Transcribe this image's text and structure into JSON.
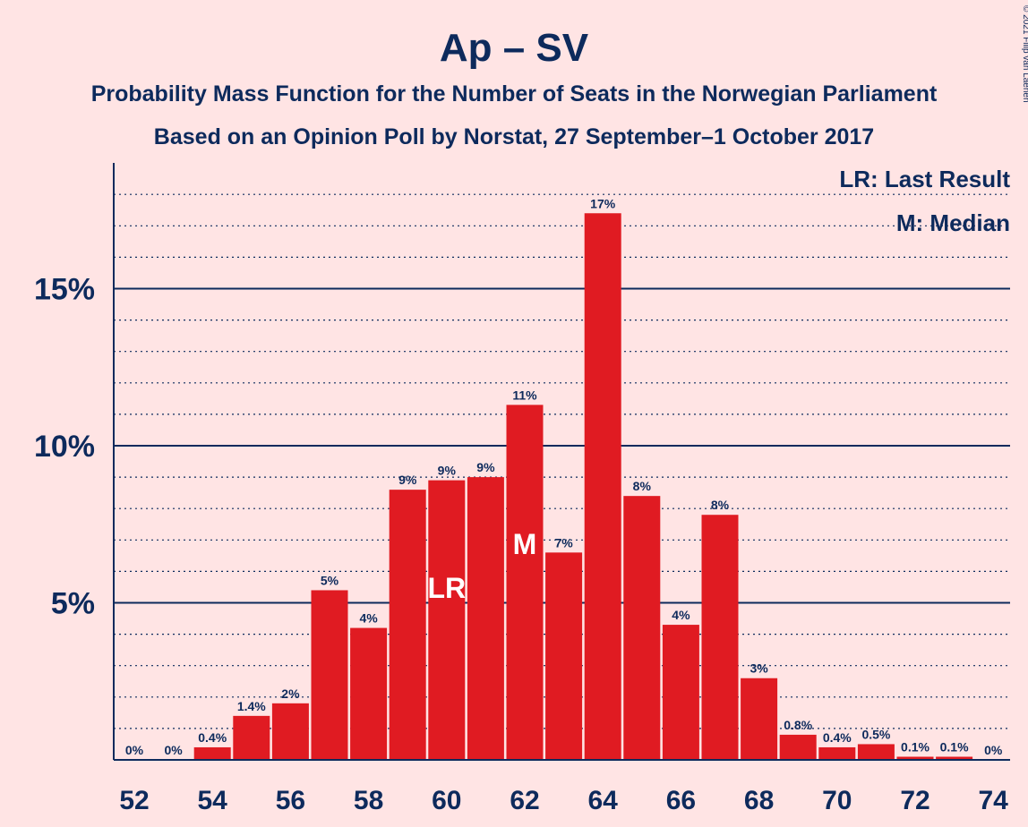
{
  "chart_data": {
    "type": "bar",
    "title": "Ap – SV",
    "subtitle_lines": [
      "Probability Mass Function for the Number of Seats in the Norwegian Parliament",
      "Based on an Opinion Poll by Norstat, 27 September–1 October 2017"
    ],
    "copyright": "© 2021 Filip van Laenen",
    "categories": [
      52,
      53,
      54,
      55,
      56,
      57,
      58,
      59,
      60,
      61,
      62,
      63,
      64,
      65,
      66,
      67,
      68,
      69,
      70,
      71,
      72,
      73,
      74
    ],
    "values": [
      0,
      0,
      0.4,
      1.4,
      1.8,
      5.4,
      4.2,
      8.6,
      8.9,
      9.0,
      11.3,
      6.6,
      17.4,
      8.4,
      4.3,
      7.8,
      2.6,
      0.8,
      0.4,
      0.5,
      0.1,
      0.1,
      0
    ],
    "value_labels": [
      "0%",
      "0%",
      "0.4%",
      "1.4%",
      "2%",
      "5%",
      "4%",
      "9%",
      "9%",
      "9%",
      "11%",
      "7%",
      "17%",
      "8%",
      "4%",
      "8%",
      "3%",
      "0.8%",
      "0.4%",
      "0.5%",
      "0.1%",
      "0.1%",
      "0%"
    ],
    "x_tick_labels": [
      "52",
      "54",
      "56",
      "58",
      "60",
      "62",
      "64",
      "66",
      "68",
      "70",
      "72",
      "74"
    ],
    "y_tick_values": [
      5,
      10,
      15
    ],
    "y_tick_labels": [
      "5%",
      "10%",
      "15%"
    ],
    "ylim": [
      0,
      19
    ],
    "grid": true,
    "bar_color": "#E01B22",
    "text_color": "#0D2A5C",
    "background_color": "#FFE4E4",
    "markers": [
      {
        "seat": 60,
        "label": "LR"
      },
      {
        "seat": 62,
        "label": "M"
      }
    ],
    "legend": {
      "placement": "top-right",
      "entries": [
        "LR: Last Result",
        "M: Median"
      ]
    }
  }
}
